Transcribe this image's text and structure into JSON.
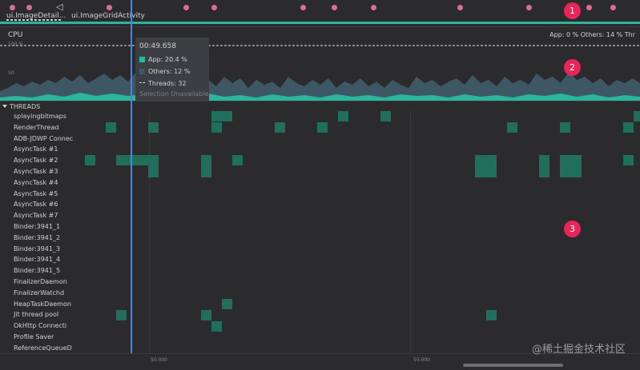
{
  "events": {
    "activities": [
      "ui.ImageDetail...",
      "ui.ImageGridActivity"
    ],
    "back_glyph": "◁"
  },
  "cpu": {
    "title": "CPU",
    "legend": "App: 0 %   Others: 14 %   Thr",
    "tick_100": "100 %",
    "tick_50": "50",
    "app_color": "#2bb59a",
    "others_color": "#3d5764"
  },
  "tooltip": {
    "time": "00:49.658",
    "app": "App: 20.4 %",
    "others": "Others: 12 %",
    "threads": "Threads: 32",
    "selection": "Selection Unavailable"
  },
  "badges": [
    "1",
    "2",
    "3"
  ],
  "threads": {
    "header": "THREADS",
    "names": [
      "splayingbitmaps",
      "RenderThread",
      "ADB-JDWP Connec",
      "AsyncTask #1",
      "AsyncTask #2",
      "AsyncTask #3",
      "AsyncTask #4",
      "AsyncTask #5",
      "AsyncTask #6",
      "AsyncTask #7",
      "Binder:3941_1",
      "Binder:3941_2",
      "Binder:3941_3",
      "Binder:3941_4",
      "Binder:3941_5",
      "FinalizerDaemon",
      "FinalizerWatchd",
      "HeapTaskDaemon",
      "Jit thread pool",
      "OkHttp Connecti",
      "Profile Saver",
      "ReferenceQueueD"
    ]
  },
  "axis": {
    "ticks": [
      "50.000",
      "55.000"
    ]
  },
  "watermark": "@稀土掘金技术社区"
}
